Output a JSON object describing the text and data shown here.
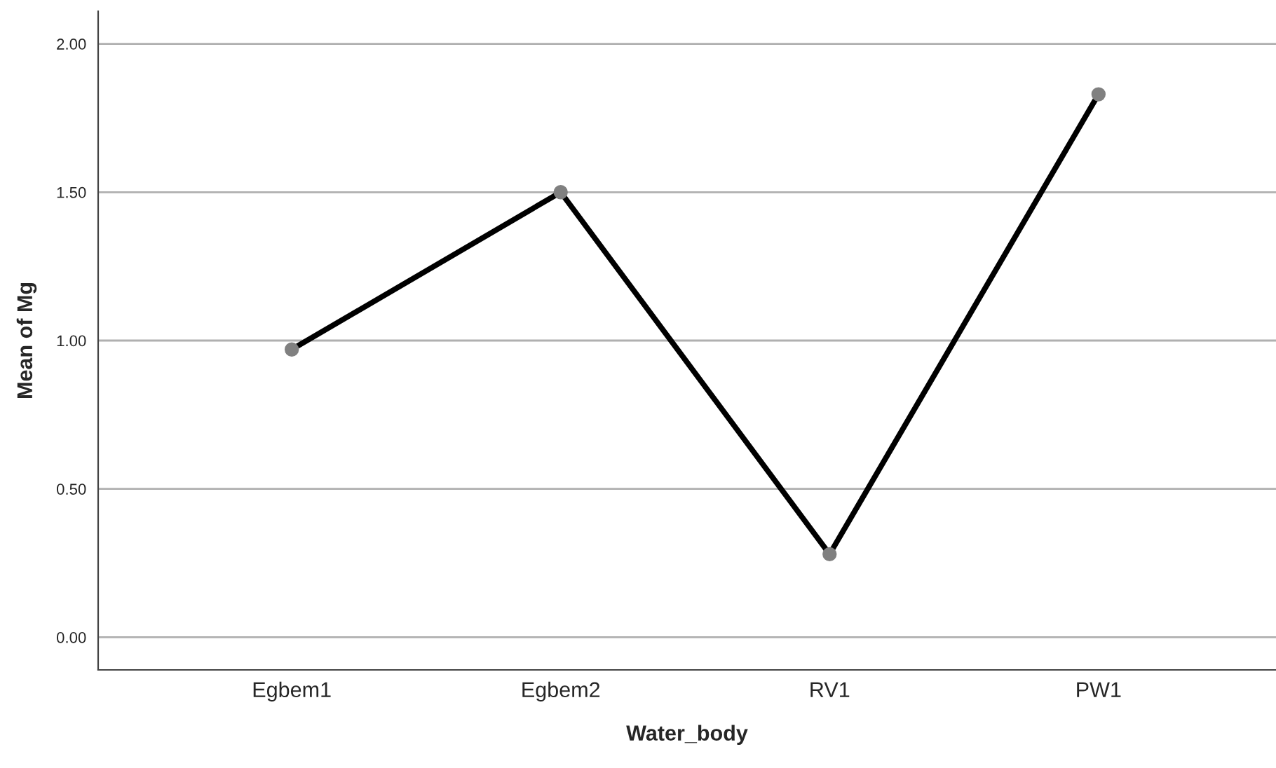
{
  "chart_data": {
    "type": "line",
    "xlabel": "Water_body",
    "ylabel": "Mean of Mg",
    "categories": [
      "Egbem1",
      "Egbem2",
      "RV1",
      "PW1"
    ],
    "series": [
      {
        "color": "#000000",
        "values": [
          0.97,
          1.5,
          0.28,
          1.83
        ]
      }
    ],
    "ylim": [
      -0.11,
      2.11
    ],
    "yticks": [
      {
        "value": 0,
        "label": "0.00"
      },
      {
        "value": 0.5,
        "label": "0.50"
      },
      {
        "value": 1,
        "label": "1.00"
      },
      {
        "value": 1.5,
        "label": "1.50"
      },
      {
        "value": 2,
        "label": "2.00"
      }
    ],
    "grid": "y",
    "marker": "circle",
    "line_style": "solid"
  }
}
